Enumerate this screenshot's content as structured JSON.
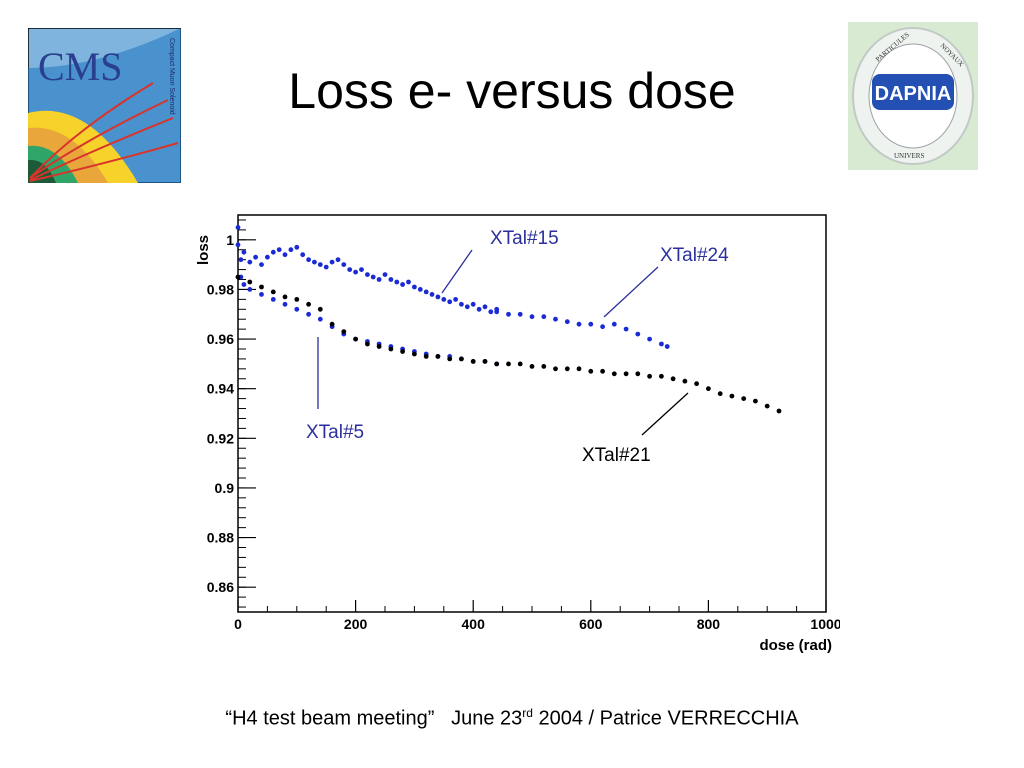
{
  "slide": {
    "title": "Loss e- versus dose",
    "footer_quote": "“H4 test beam meeting”",
    "footer_date_main": "June 23",
    "footer_date_sup": "rd",
    "footer_rest": " 2004 / Patrice VERRECCHIA"
  },
  "logos": {
    "cms": {
      "text": "CMS",
      "subtext": "Compact Muon Solenoid"
    },
    "dapnia": {
      "text": "DAPNIA",
      "ring_top": "PARTICULES",
      "ring_right": "NOYAUX",
      "ring_bottom": "UNIVERS"
    }
  },
  "colors": {
    "blue": "#1a2bd6",
    "black": "#000000",
    "annotation_blue": "#2b2f9e"
  },
  "chart_data": {
    "type": "scatter",
    "xlabel": "dose  (rad)",
    "ylabel": "loss",
    "xlim": [
      0,
      1000
    ],
    "ylim": [
      0.85,
      1.01
    ],
    "x_ticks": [
      "0",
      "200",
      "400",
      "600",
      "800",
      "1000"
    ],
    "y_ticks": [
      "0.86",
      "0.88",
      "0.9",
      "0.92",
      "0.94",
      "0.96",
      "0.98",
      "1"
    ],
    "grid": false,
    "annotations": [
      {
        "text": "XTal#15",
        "color": "#2b2f9e"
      },
      {
        "text": "XTal#24",
        "color": "#2b2f9e"
      },
      {
        "text": "XTal#5",
        "color": "#2b2f9e"
      },
      {
        "text": "XTal#21",
        "color": "#000000"
      }
    ],
    "series": [
      {
        "name": "XTal#15",
        "color": "#1a2bd6",
        "points": [
          [
            0,
            1.005
          ],
          [
            5,
            0.992
          ],
          [
            10,
            0.995
          ],
          [
            20,
            0.991
          ],
          [
            30,
            0.993
          ],
          [
            40,
            0.99
          ],
          [
            50,
            0.993
          ],
          [
            60,
            0.995
          ],
          [
            70,
            0.996
          ],
          [
            80,
            0.994
          ],
          [
            90,
            0.996
          ],
          [
            100,
            0.997
          ],
          [
            110,
            0.994
          ],
          [
            120,
            0.992
          ],
          [
            130,
            0.991
          ],
          [
            140,
            0.99
          ],
          [
            150,
            0.989
          ],
          [
            160,
            0.991
          ],
          [
            170,
            0.992
          ],
          [
            180,
            0.99
          ],
          [
            190,
            0.988
          ],
          [
            200,
            0.987
          ],
          [
            210,
            0.988
          ],
          [
            220,
            0.986
          ],
          [
            230,
            0.985
          ],
          [
            240,
            0.984
          ],
          [
            250,
            0.986
          ],
          [
            260,
            0.984
          ],
          [
            270,
            0.983
          ],
          [
            280,
            0.982
          ],
          [
            290,
            0.983
          ],
          [
            300,
            0.981
          ],
          [
            310,
            0.98
          ],
          [
            320,
            0.979
          ],
          [
            330,
            0.978
          ],
          [
            340,
            0.977
          ],
          [
            350,
            0.976
          ],
          [
            360,
            0.975
          ],
          [
            370,
            0.976
          ],
          [
            380,
            0.974
          ],
          [
            390,
            0.973
          ],
          [
            400,
            0.974
          ],
          [
            410,
            0.972
          ],
          [
            420,
            0.973
          ],
          [
            430,
            0.971
          ],
          [
            440,
            0.972
          ]
        ]
      },
      {
        "name": "XTal#24",
        "color": "#1a2bd6",
        "points": [
          [
            440,
            0.971
          ],
          [
            460,
            0.97
          ],
          [
            480,
            0.97
          ],
          [
            500,
            0.969
          ],
          [
            520,
            0.969
          ],
          [
            540,
            0.968
          ],
          [
            560,
            0.967
          ],
          [
            580,
            0.966
          ],
          [
            600,
            0.966
          ],
          [
            620,
            0.965
          ],
          [
            640,
            0.966
          ],
          [
            660,
            0.964
          ],
          [
            680,
            0.962
          ],
          [
            700,
            0.96
          ],
          [
            720,
            0.958
          ],
          [
            730,
            0.957
          ]
        ]
      },
      {
        "name": "XTal#5",
        "color": "#1a2bd6",
        "points": [
          [
            0,
            0.998
          ],
          [
            5,
            0.985
          ],
          [
            10,
            0.982
          ],
          [
            20,
            0.98
          ],
          [
            40,
            0.978
          ],
          [
            60,
            0.976
          ],
          [
            80,
            0.974
          ],
          [
            100,
            0.972
          ],
          [
            120,
            0.97
          ],
          [
            140,
            0.968
          ],
          [
            160,
            0.965
          ],
          [
            180,
            0.962
          ],
          [
            200,
            0.96
          ],
          [
            220,
            0.959
          ],
          [
            240,
            0.958
          ],
          [
            260,
            0.957
          ],
          [
            280,
            0.956
          ],
          [
            300,
            0.955
          ],
          [
            320,
            0.954
          ],
          [
            340,
            0.953
          ],
          [
            360,
            0.953
          ],
          [
            380,
            0.952
          ],
          [
            400,
            0.951
          ],
          [
            420,
            0.951
          ],
          [
            440,
            0.95
          ]
        ]
      },
      {
        "name": "XTal#21",
        "color": "#000000",
        "points": [
          [
            0,
            0.985
          ],
          [
            20,
            0.983
          ],
          [
            40,
            0.981
          ],
          [
            60,
            0.979
          ],
          [
            80,
            0.977
          ],
          [
            100,
            0.976
          ],
          [
            120,
            0.974
          ],
          [
            140,
            0.972
          ],
          [
            160,
            0.966
          ],
          [
            180,
            0.963
          ],
          [
            200,
            0.96
          ],
          [
            220,
            0.958
          ],
          [
            240,
            0.957
          ],
          [
            260,
            0.956
          ],
          [
            280,
            0.955
          ],
          [
            300,
            0.954
          ],
          [
            320,
            0.953
          ],
          [
            340,
            0.953
          ],
          [
            360,
            0.952
          ],
          [
            380,
            0.952
          ],
          [
            400,
            0.951
          ],
          [
            420,
            0.951
          ],
          [
            440,
            0.95
          ],
          [
            460,
            0.95
          ],
          [
            480,
            0.95
          ],
          [
            500,
            0.949
          ],
          [
            520,
            0.949
          ],
          [
            540,
            0.948
          ],
          [
            560,
            0.948
          ],
          [
            580,
            0.948
          ],
          [
            600,
            0.947
          ],
          [
            620,
            0.947
          ],
          [
            640,
            0.946
          ],
          [
            660,
            0.946
          ],
          [
            680,
            0.946
          ],
          [
            700,
            0.945
          ],
          [
            720,
            0.945
          ],
          [
            740,
            0.944
          ],
          [
            760,
            0.943
          ],
          [
            780,
            0.942
          ],
          [
            800,
            0.94
          ],
          [
            820,
            0.938
          ],
          [
            840,
            0.937
          ],
          [
            860,
            0.936
          ],
          [
            880,
            0.935
          ],
          [
            900,
            0.933
          ],
          [
            920,
            0.931
          ]
        ]
      }
    ]
  }
}
